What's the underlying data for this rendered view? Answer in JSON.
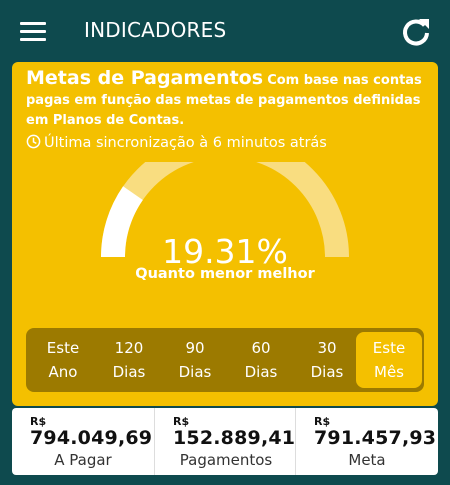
{
  "app": {
    "title": "INDICADORES"
  },
  "card": {
    "title": "Metas de Pagamentos",
    "description": "Com base nas contas pagas em função das metas de pagamentos definidas em Planos de Contas.",
    "sync": "Última sincronização à 6 minutos atrás",
    "gauge": {
      "value_text": "19.31%",
      "value": 19.31,
      "caption": "Quanto menor melhor"
    }
  },
  "periods": [
    {
      "line1": "Este",
      "line2": "Ano",
      "active": false
    },
    {
      "line1": "120",
      "line2": "Dias",
      "active": false
    },
    {
      "line1": "90",
      "line2": "Dias",
      "active": false
    },
    {
      "line1": "60",
      "line2": "Dias",
      "active": false
    },
    {
      "line1": "30",
      "line2": "Dias",
      "active": false
    },
    {
      "line1": "Este",
      "line2": "Mês",
      "active": true
    }
  ],
  "summary": [
    {
      "currency": "R$",
      "amount": "794.049,69",
      "label": "A Pagar"
    },
    {
      "currency": "R$",
      "amount": "152.889,41",
      "label": "Pagamentos"
    },
    {
      "currency": "R$",
      "amount": "791.457,93",
      "label": "Meta"
    }
  ],
  "colors": {
    "background": "#0e4a4e",
    "card": "#f4c000",
    "period_bar": "#9c7a00",
    "gauge_track": "#f9dd80",
    "text": "#ffffff"
  },
  "icons": {
    "menu": "hamburger-icon",
    "refresh": "refresh-icon",
    "clock": "clock-icon"
  }
}
